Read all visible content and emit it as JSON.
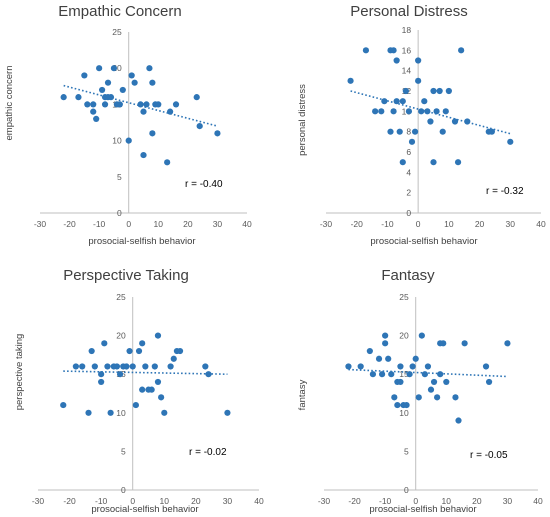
{
  "chart_data": [
    {
      "type": "scatter",
      "title": "Empathic Concern",
      "xlabel": "prosocial-selfish behavior",
      "ylabel": "empathic concern",
      "xlim": [
        -30,
        40
      ],
      "ylim": [
        0,
        25
      ],
      "xticks": [
        -30,
        -20,
        -10,
        0,
        10,
        20,
        30,
        40
      ],
      "yticks": [
        0,
        5,
        10,
        15,
        20,
        25
      ],
      "annotation": "r = -0.40",
      "grid": false,
      "trendline": {
        "x": [
          -22,
          30
        ],
        "y": [
          17.6,
          12.0
        ]
      },
      "x": [
        -22,
        -17,
        -15,
        -14,
        -12,
        -12,
        -11,
        -10,
        -9,
        -8,
        -8,
        -7,
        -7,
        -6,
        -5,
        -4,
        -3,
        -2,
        0,
        1,
        2,
        4,
        5,
        5,
        6,
        7,
        8,
        8,
        9,
        10,
        13,
        14,
        16,
        23,
        24,
        30
      ],
      "y": [
        16,
        16,
        19,
        15,
        15,
        14,
        13,
        20,
        17,
        16,
        15,
        16,
        18,
        16,
        20,
        15,
        15,
        17,
        10,
        19,
        18,
        15,
        8,
        14,
        15,
        20,
        11,
        18,
        15,
        15,
        7,
        14,
        15,
        16,
        12,
        11
      ]
    },
    {
      "type": "scatter",
      "title": "Personal Distress",
      "xlabel": "prosocial-selfish behavior",
      "ylabel": "personal distress",
      "xlim": [
        -30,
        40
      ],
      "ylim": [
        0,
        18
      ],
      "xticks": [
        -30,
        -20,
        -10,
        0,
        10,
        20,
        30,
        40
      ],
      "yticks": [
        0,
        2,
        4,
        6,
        8,
        10,
        12,
        14,
        16,
        18
      ],
      "annotation": "r = -0.32",
      "grid": false,
      "trendline": {
        "x": [
          -22,
          30
        ],
        "y": [
          12.0,
          7.8
        ]
      },
      "x": [
        -22,
        -17,
        -14,
        -12,
        -11,
        -9,
        -9,
        -8,
        -8,
        -7,
        -7,
        -6,
        -5,
        -5,
        -4,
        -3,
        -2,
        -1,
        0,
        0,
        1,
        2,
        3,
        4,
        5,
        5,
        6,
        7,
        8,
        9,
        10,
        12,
        13,
        14,
        16,
        23,
        24,
        30
      ],
      "y": [
        13,
        16,
        10,
        10,
        11,
        16,
        8,
        16,
        10,
        15,
        11,
        8,
        11,
        5,
        12,
        10,
        7,
        8,
        15,
        13,
        10,
        11,
        10,
        9,
        12,
        5,
        10,
        12,
        8,
        10,
        12,
        9,
        5,
        16,
        9,
        8,
        8,
        7
      ]
    },
    {
      "type": "scatter",
      "title": "Perspective Taking",
      "xlabel": "prosocial-selfish behavior",
      "ylabel": "perspective taking",
      "xlim": [
        -30,
        40
      ],
      "ylim": [
        0,
        25
      ],
      "xticks": [
        -30,
        -20,
        -10,
        0,
        10,
        20,
        30,
        40
      ],
      "yticks": [
        0,
        5,
        10,
        15,
        20,
        25
      ],
      "annotation": "r = -0.02",
      "grid": false,
      "trendline": {
        "x": [
          -22,
          30
        ],
        "y": [
          15.4,
          15.0
        ]
      },
      "x": [
        -22,
        -18,
        -16,
        -14,
        -13,
        -12,
        -10,
        -10,
        -9,
        -8,
        -7,
        -6,
        -5,
        -4,
        -3,
        -2,
        -1,
        0,
        1,
        2,
        3,
        3,
        4,
        5,
        6,
        7,
        8,
        8,
        9,
        10,
        12,
        13,
        14,
        15,
        23,
        24,
        30
      ],
      "y": [
        11,
        16,
        16,
        10,
        18,
        16,
        15,
        14,
        19,
        16,
        10,
        16,
        16,
        15,
        16,
        16,
        18,
        16,
        11,
        18,
        13,
        19,
        16,
        13,
        13,
        16,
        14,
        20,
        12,
        10,
        16,
        17,
        18,
        18,
        16,
        15,
        10
      ]
    },
    {
      "type": "scatter",
      "title": "Fantasy",
      "xlabel": "prosocial-selfish behavior",
      "ylabel": "fantasy",
      "xlim": [
        -30,
        40
      ],
      "ylim": [
        0,
        25
      ],
      "xticks": [
        -30,
        -20,
        -10,
        0,
        10,
        20,
        30,
        40
      ],
      "yticks": [
        0,
        5,
        10,
        15,
        20,
        25
      ],
      "annotation": "r = -0.05",
      "grid": false,
      "trendline": {
        "x": [
          -22,
          30
        ],
        "y": [
          15.6,
          14.7
        ]
      },
      "x": [
        -22,
        -18,
        -15,
        -14,
        -12,
        -11,
        -10,
        -10,
        -9,
        -8,
        -7,
        -6,
        -6,
        -5,
        -5,
        -4,
        -3,
        -2,
        -1,
        0,
        1,
        2,
        3,
        4,
        5,
        6,
        7,
        8,
        8,
        9,
        10,
        13,
        14,
        16,
        23,
        24,
        30
      ],
      "y": [
        16,
        16,
        18,
        15,
        17,
        15,
        20,
        19,
        17,
        15,
        12,
        14,
        11,
        16,
        14,
        11,
        11,
        15,
        16,
        17,
        12,
        20,
        15,
        16,
        13,
        14,
        12,
        19,
        15,
        19,
        14,
        12,
        9,
        19,
        16,
        14,
        19
      ]
    }
  ]
}
